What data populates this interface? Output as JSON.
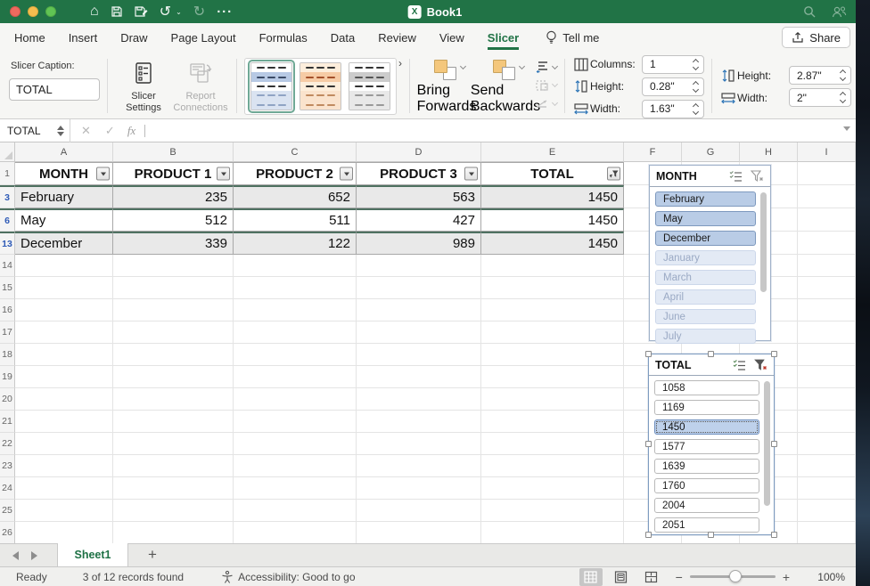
{
  "window": {
    "title": "Book1"
  },
  "tabs": {
    "items": [
      "Home",
      "Insert",
      "Draw",
      "Page Layout",
      "Formulas",
      "Data",
      "Review",
      "View",
      "Slicer"
    ],
    "active": "Slicer",
    "tell_me": "Tell me",
    "share": "Share"
  },
  "ribbon": {
    "slicer_caption_label": "Slicer Caption:",
    "slicer_caption_value": "TOTAL",
    "slicer_settings": "Slicer Settings",
    "report_connections": "Report Connections",
    "bring_forwards": "Bring Forwards",
    "send_backwards": "Send Backwards",
    "fields": [
      {
        "label": "Columns:",
        "value": "1"
      },
      {
        "label": "Height:",
        "value": "0.28\""
      },
      {
        "label": "Width:",
        "value": "1.63\""
      }
    ],
    "size_fields": [
      {
        "label": "Height:",
        "value": "2.87\""
      },
      {
        "label": "Width:",
        "value": "2\""
      }
    ]
  },
  "formula_bar": {
    "name_box": "TOTAL"
  },
  "grid": {
    "columns": [
      "A",
      "B",
      "C",
      "D",
      "E",
      "F",
      "G",
      "H",
      "I"
    ],
    "table": {
      "header_row_number": "1",
      "headers": [
        "MONTH",
        "PRODUCT 1",
        "PRODUCT 2",
        "PRODUCT 3",
        "TOTAL"
      ],
      "rows": [
        {
          "row": "3",
          "cells": [
            "February",
            "235",
            "652",
            "563",
            "1450"
          ],
          "banded": true
        },
        {
          "row": "6",
          "cells": [
            "May",
            "512",
            "511",
            "427",
            "1450"
          ],
          "banded": false
        },
        {
          "row": "13",
          "cells": [
            "December",
            "339",
            "122",
            "989",
            "1450"
          ],
          "banded": true
        }
      ]
    },
    "empty_rows": [
      "14",
      "15",
      "16",
      "17",
      "18",
      "19",
      "20",
      "21",
      "22",
      "23",
      "24",
      "25",
      "26"
    ]
  },
  "slicers": {
    "month": {
      "title": "MONTH",
      "items": [
        {
          "label": "February",
          "state": "selected"
        },
        {
          "label": "May",
          "state": "selected"
        },
        {
          "label": "December",
          "state": "selected"
        },
        {
          "label": "January",
          "state": "faded"
        },
        {
          "label": "March",
          "state": "faded"
        },
        {
          "label": "April",
          "state": "faded"
        },
        {
          "label": "June",
          "state": "faded"
        },
        {
          "label": "July",
          "state": "faded"
        }
      ]
    },
    "total": {
      "title": "TOTAL",
      "items": [
        {
          "label": "1058",
          "state": "normal"
        },
        {
          "label": "1169",
          "state": "normal"
        },
        {
          "label": "1450",
          "state": "selected-focus"
        },
        {
          "label": "1577",
          "state": "normal"
        },
        {
          "label": "1639",
          "state": "normal"
        },
        {
          "label": "1760",
          "state": "normal"
        },
        {
          "label": "2004",
          "state": "normal"
        },
        {
          "label": "2051",
          "state": "normal"
        }
      ]
    }
  },
  "sheet_bar": {
    "active_tab": "Sheet1"
  },
  "status_bar": {
    "mode": "Ready",
    "records": "3 of 12 records found",
    "accessibility": "Accessibility: Good to go",
    "zoom": "100%"
  },
  "colors": {
    "brand_green": "#217346",
    "slicer_selected": "#b9cce6",
    "filtered_row_number": "#2f5bb7"
  }
}
